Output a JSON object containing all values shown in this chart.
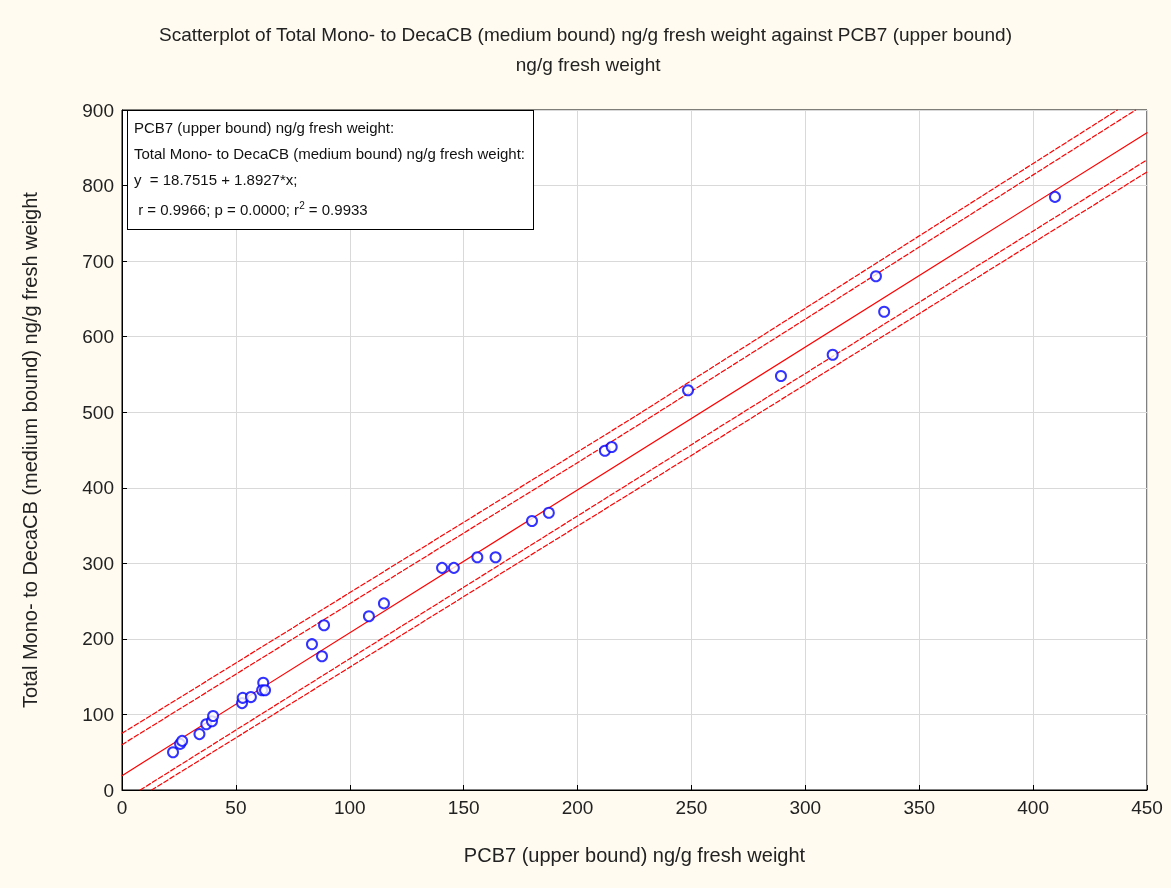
{
  "chart_data": {
    "type": "scatter",
    "title": "Scatterplot of Total Mono- to DecaCB (medium bound) ng/g fresh weight against PCB7 (upper bound) ng/g fresh weight",
    "xlabel": "PCB7 (upper bound) ng/g fresh weight",
    "ylabel": "Total Mono- to DecaCB (medium bound) ng/g fresh weight",
    "annotations": [
      "PCB7 (upper bound) ng/g fresh weight:",
      "Total Mono- to DecaCB (medium bound) ng/g fresh weight:",
      "y  = 18.7515 + 1.8927*x;",
      " r = 0.9966; p = 0.0000; r$^{2}$ = 0.9933"
    ],
    "xlim": [
      0,
      450
    ],
    "xticks": [
      0,
      50,
      100,
      150,
      200,
      250,
      300,
      350,
      400,
      450
    ],
    "ylim": [
      0,
      900
    ],
    "yticks": [
      0,
      100,
      200,
      300,
      400,
      500,
      600,
      700,
      800,
      900
    ],
    "grid": true,
    "legend": false,
    "series": [
      {
        "type": "scatter",
        "color": "#0000ff",
        "marker": "circle",
        "x": [
          22.4,
          25.5,
          26.4,
          34,
          37,
          39.5,
          40,
          52.7,
          53,
          56.6,
          61,
          62,
          61.5,
          62.8,
          83.4,
          87.8,
          88.7,
          108.4,
          115,
          140.5,
          145.7,
          156,
          164,
          180,
          187.4,
          212,
          215,
          248.5,
          289.3,
          312,
          331,
          334.6,
          409.6
        ],
        "values": [
          50,
          61,
          65,
          74,
          87,
          91,
          98,
          115,
          122,
          123,
          null,
          142,
          132,
          132,
          193,
          177,
          218,
          230,
          247,
          294,
          294,
          308,
          308,
          356,
          367,
          449,
          454,
          529,
          548,
          576,
          680,
          633,
          785
        ]
      },
      {
        "type": "line",
        "color": "#ff0000",
        "marker": "none",
        "line_style": "solid",
        "x": [
          0,
          450
        ],
        "values": [
          19,
          870
        ]
      },
      {
        "type": "line",
        "color": "#ff0000",
        "marker": "none",
        "line_style": "dashed",
        "x": [
          0,
          225,
          437
        ],
        "values": [
          75,
          494,
          900
        ]
      },
      {
        "type": "line",
        "color": "#ff0000",
        "marker": "none",
        "line_style": "dashed",
        "x": [
          0,
          225,
          445
        ],
        "values": [
          60,
          480,
          900
        ]
      },
      {
        "type": "line",
        "color": "#ff0000",
        "marker": "none",
        "line_style": "dashed",
        "x": [
          8,
          225,
          450
        ],
        "values": [
          0,
          410,
          834
        ]
      },
      {
        "type": "line",
        "color": "#ff0000",
        "marker": "none",
        "line_style": "dashed",
        "x": [
          13,
          225,
          450
        ],
        "values": [
          0,
          396,
          818
        ]
      }
    ]
  }
}
